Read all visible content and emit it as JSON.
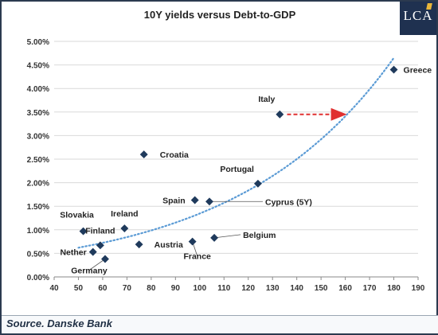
{
  "logo": {
    "text": "LCA"
  },
  "source": "Source. Danske Bank",
  "chart_data": {
    "type": "scatter",
    "title": "10Y yields versus Debt-to-GDP",
    "xlabel": "",
    "ylabel": "",
    "xlim": [
      40,
      190
    ],
    "ylim": [
      0,
      5
    ],
    "x_ticks": [
      40,
      50,
      60,
      70,
      80,
      90,
      100,
      110,
      120,
      130,
      140,
      150,
      160,
      170,
      180,
      190
    ],
    "y_ticks": [
      0,
      0.5,
      1.0,
      1.5,
      2.0,
      2.5,
      3.0,
      3.5,
      4.0,
      4.5,
      5.0
    ],
    "y_tick_labels": [
      "0.00%",
      "0.50%",
      "1.00%",
      "1.50%",
      "2.00%",
      "2.50%",
      "3.00%",
      "3.50%",
      "4.00%",
      "4.50%",
      "5.00%"
    ],
    "grid": "horizontal",
    "marker_color": "#1f3a5c",
    "trendline": {
      "type": "exponential",
      "style": "dotted",
      "color": "#5b9bd5",
      "x_range": [
        50,
        180
      ]
    },
    "arrow": {
      "from": [
        136,
        3.45
      ],
      "to": [
        160,
        3.45
      ],
      "color": "#e03030",
      "style": "dashed"
    },
    "points": [
      {
        "label": "Greece",
        "x": 180,
        "y": 4.4
      },
      {
        "label": "Italy",
        "x": 133,
        "y": 3.45
      },
      {
        "label": "Croatia",
        "x": 77,
        "y": 2.6
      },
      {
        "label": "Portugal",
        "x": 124,
        "y": 1.98
      },
      {
        "label": "Spain",
        "x": 98,
        "y": 1.63
      },
      {
        "label": "Cyprus (5Y)",
        "x": 104,
        "y": 1.6
      },
      {
        "label": "Ireland",
        "x": 69,
        "y": 1.03
      },
      {
        "label": "Slovakia",
        "x": 52,
        "y": 0.97
      },
      {
        "label": "Finland",
        "x": 59,
        "y": 0.67
      },
      {
        "label": "Nether",
        "x": 56,
        "y": 0.53
      },
      {
        "label": "Germany",
        "x": 61,
        "y": 0.38
      },
      {
        "label": "Austria",
        "x": 75,
        "y": 0.69
      },
      {
        "label": "France",
        "x": 97,
        "y": 0.75
      },
      {
        "label": "Belgium",
        "x": 106,
        "y": 0.83
      }
    ]
  }
}
